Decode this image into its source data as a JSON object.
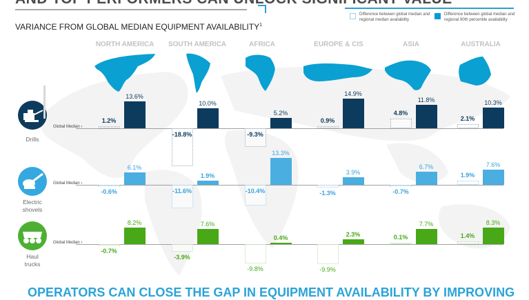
{
  "header": {
    "headline": "AND TOP PERFORMERS CAN UNLOCK SIGNIFICANT VALUE",
    "subtitle": "VARIANCE FROM GLOBAL MEDIAN EQUIPMENT AVAILABILITY",
    "subtitle_sup": "1"
  },
  "legend": {
    "median_label": "Difference between global median and regional median availability",
    "p90_label": "Difference between global median and regional 90th percentile availability"
  },
  "footer": {
    "headline": "OPERATORS CAN CLOSE THE GAP IN EQUIPMENT AVAILABILITY BY IMPROVING"
  },
  "colors": {
    "drills": "#0d3b5e",
    "shovels": "#4aaee0",
    "trucks": "#48a818",
    "map": "#0aa0d2",
    "bg_map": "#f2f2f2"
  },
  "chart_data": {
    "type": "bar",
    "title": "VARIANCE FROM GLOBAL MEDIAN EQUIPMENT AVAILABILITY",
    "categories": [
      "NORTH AMERICA",
      "SOUTH AMERICA",
      "AFRICA",
      "EUROPE & CIS",
      "ASIA",
      "AUSTRALIA"
    ],
    "baseline_label": "Global Median",
    "unit": "%",
    "panels": [
      {
        "equipment": "Drills",
        "color_key": "drills",
        "series": [
          {
            "name": "Difference between global median and regional median availability",
            "values": [
              1.2,
              -18.8,
              -9.3,
              0.9,
              4.8,
              2.1
            ],
            "labels": [
              "1.2%",
              "-18.8%",
              "-9.3%",
              "0.9%",
              "4.8%",
              "2.1%"
            ]
          },
          {
            "name": "Difference between global median and regional 90th percentile availability",
            "values": [
              13.6,
              10.0,
              5.2,
              14.9,
              11.8,
              10.3
            ],
            "labels": [
              "13.6%",
              "10.0%",
              "5.2%",
              "14.9%",
              "11.8%",
              "10.3%"
            ]
          }
        ]
      },
      {
        "equipment": "Electric shovels",
        "equipment_lines": [
          "Electric",
          "shovels"
        ],
        "color_key": "shovels",
        "series": [
          {
            "name": "Difference between global median and regional median availability",
            "values": [
              -0.6,
              -11.6,
              -10.4,
              -1.3,
              -0.7,
              1.9
            ],
            "labels": [
              "-0.6%",
              "-11.6%",
              "-10.4%",
              "-1.3%",
              "-0.7%",
              "1.9%"
            ]
          },
          {
            "name": "Difference between global median and regional 90th percentile availability",
            "values": [
              6.1,
              1.9,
              13.3,
              3.9,
              6.7,
              7.6
            ],
            "labels": [
              "6.1%",
              "1.9%",
              "13.3%",
              "3.9%",
              "6.7%",
              "7.6%"
            ]
          }
        ]
      },
      {
        "equipment": "Haul trucks",
        "equipment_lines": [
          "Haul",
          "trucks"
        ],
        "color_key": "trucks",
        "series": [
          {
            "name": "Difference between global median and regional median availability",
            "values": [
              -0.7,
              -3.9,
              -9.8,
              -9.9,
              0.1,
              1.4
            ],
            "labels": [
              "-0.7%",
              "-3.9%",
              "-9.8%",
              "-9.9%",
              "0.1%",
              "1.4%"
            ]
          },
          {
            "name": "Difference between global median and regional 90th percentile availability",
            "values": [
              8.2,
              7.6,
              0.4,
              2.3,
              7.7,
              8.3
            ],
            "labels": [
              "8.2%",
              "7.6%",
              "0.4%",
              "2.3%",
              "7.7%",
              "8.3%"
            ]
          }
        ]
      }
    ]
  }
}
